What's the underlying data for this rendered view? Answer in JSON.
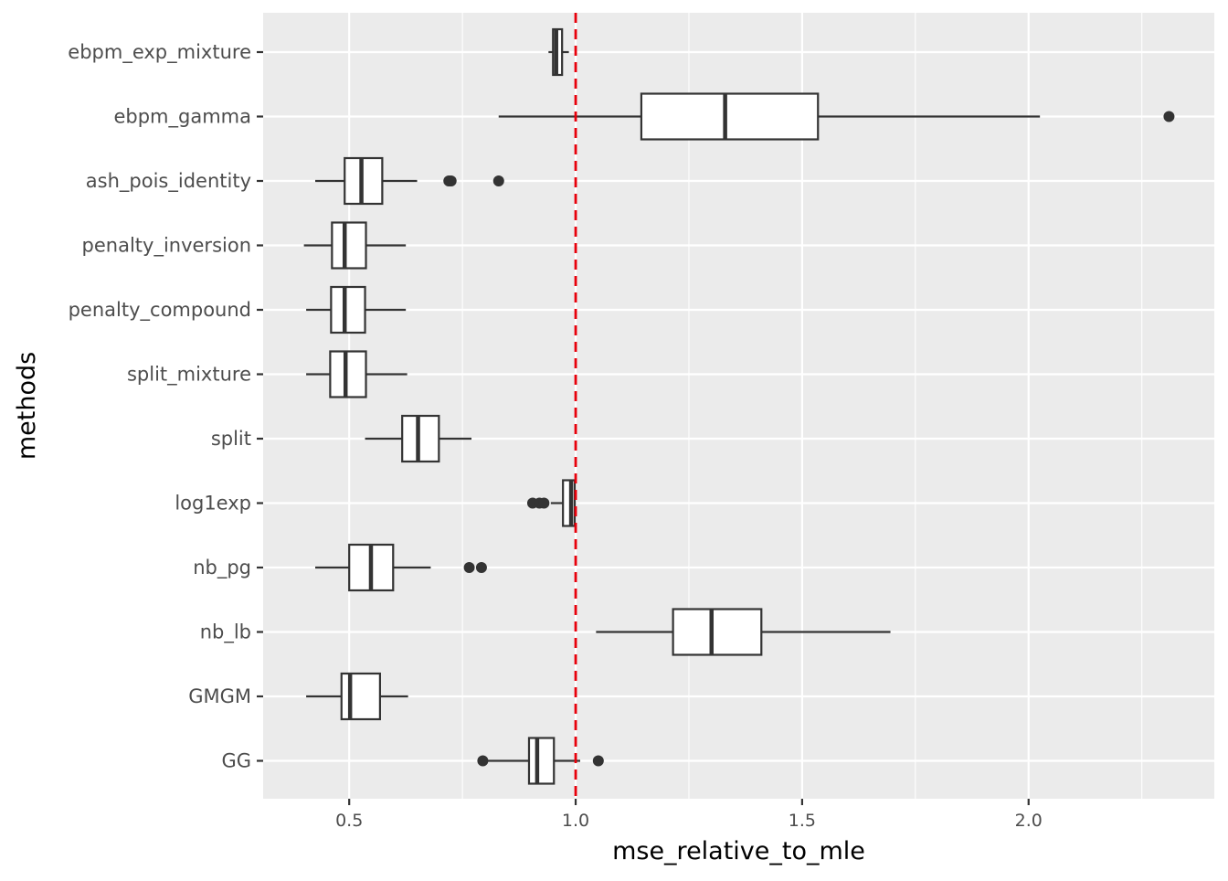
{
  "chart_data": {
    "type": "boxplot",
    "orientation": "horizontal",
    "title": "",
    "xlabel": "mse_relative_to_mle",
    "ylabel": "methods",
    "xlim": [
      0.31,
      2.41
    ],
    "x_ticks": [
      0.5,
      1.0,
      1.5,
      2.0
    ],
    "x_tick_labels": [
      "0.5",
      "1.0",
      "1.5",
      "2.0"
    ],
    "reference_line": {
      "x": 1.0,
      "color": "#e8000b",
      "style": "dashed"
    },
    "panel_background": "#ebebeb",
    "grid_color": "#ffffff",
    "box_fill": "#ffffff",
    "box_stroke": "#333333",
    "categories": [
      "ebpm_exp_mixture",
      "ebpm_gamma",
      "ash_pois_identity",
      "penalty_inversion",
      "penalty_compound",
      "split_mixture",
      "split",
      "log1exp",
      "nb_pg",
      "nb_lb",
      "GMGM",
      "GG"
    ],
    "boxes": [
      {
        "name": "ebpm_exp_mixture",
        "whisker_low": 0.94,
        "q1": 0.95,
        "median": 0.957,
        "q3": 0.97,
        "whisker_high": 0.985,
        "outliers": []
      },
      {
        "name": "ebpm_gamma",
        "whisker_low": 0.83,
        "q1": 1.145,
        "median": 1.33,
        "q3": 1.535,
        "whisker_high": 2.025,
        "outliers": [
          2.31
        ]
      },
      {
        "name": "ash_pois_identity",
        "whisker_low": 0.425,
        "q1": 0.49,
        "median": 0.527,
        "q3": 0.573,
        "whisker_high": 0.65,
        "outliers": [
          0.72,
          0.725,
          0.83
        ]
      },
      {
        "name": "penalty_inversion",
        "whisker_low": 0.4,
        "q1": 0.462,
        "median": 0.49,
        "q3": 0.537,
        "whisker_high": 0.625,
        "outliers": []
      },
      {
        "name": "penalty_compound",
        "whisker_low": 0.405,
        "q1": 0.46,
        "median": 0.49,
        "q3": 0.535,
        "whisker_high": 0.625,
        "outliers": []
      },
      {
        "name": "split_mixture",
        "whisker_low": 0.405,
        "q1": 0.458,
        "median": 0.492,
        "q3": 0.537,
        "whisker_high": 0.628,
        "outliers": []
      },
      {
        "name": "split",
        "whisker_low": 0.535,
        "q1": 0.617,
        "median": 0.652,
        "q3": 0.698,
        "whisker_high": 0.77,
        "outliers": []
      },
      {
        "name": "log1exp",
        "whisker_low": 0.945,
        "q1": 0.972,
        "median": 0.99,
        "q3": 0.998,
        "whisker_high": 1.0,
        "outliers": [
          0.905,
          0.92,
          0.93
        ]
      },
      {
        "name": "nb_pg",
        "whisker_low": 0.425,
        "q1": 0.5,
        "median": 0.548,
        "q3": 0.597,
        "whisker_high": 0.68,
        "outliers": [
          0.765,
          0.792
        ]
      },
      {
        "name": "nb_lb",
        "whisker_low": 1.045,
        "q1": 1.215,
        "median": 1.3,
        "q3": 1.41,
        "whisker_high": 1.695,
        "outliers": []
      },
      {
        "name": "GMGM",
        "whisker_low": 0.405,
        "q1": 0.483,
        "median": 0.502,
        "q3": 0.568,
        "whisker_high": 0.63,
        "outliers": []
      },
      {
        "name": "GG",
        "whisker_low": 0.795,
        "q1": 0.897,
        "median": 0.915,
        "q3": 0.952,
        "whisker_high": 1.01,
        "outliers": [
          0.795,
          1.05
        ]
      }
    ]
  }
}
